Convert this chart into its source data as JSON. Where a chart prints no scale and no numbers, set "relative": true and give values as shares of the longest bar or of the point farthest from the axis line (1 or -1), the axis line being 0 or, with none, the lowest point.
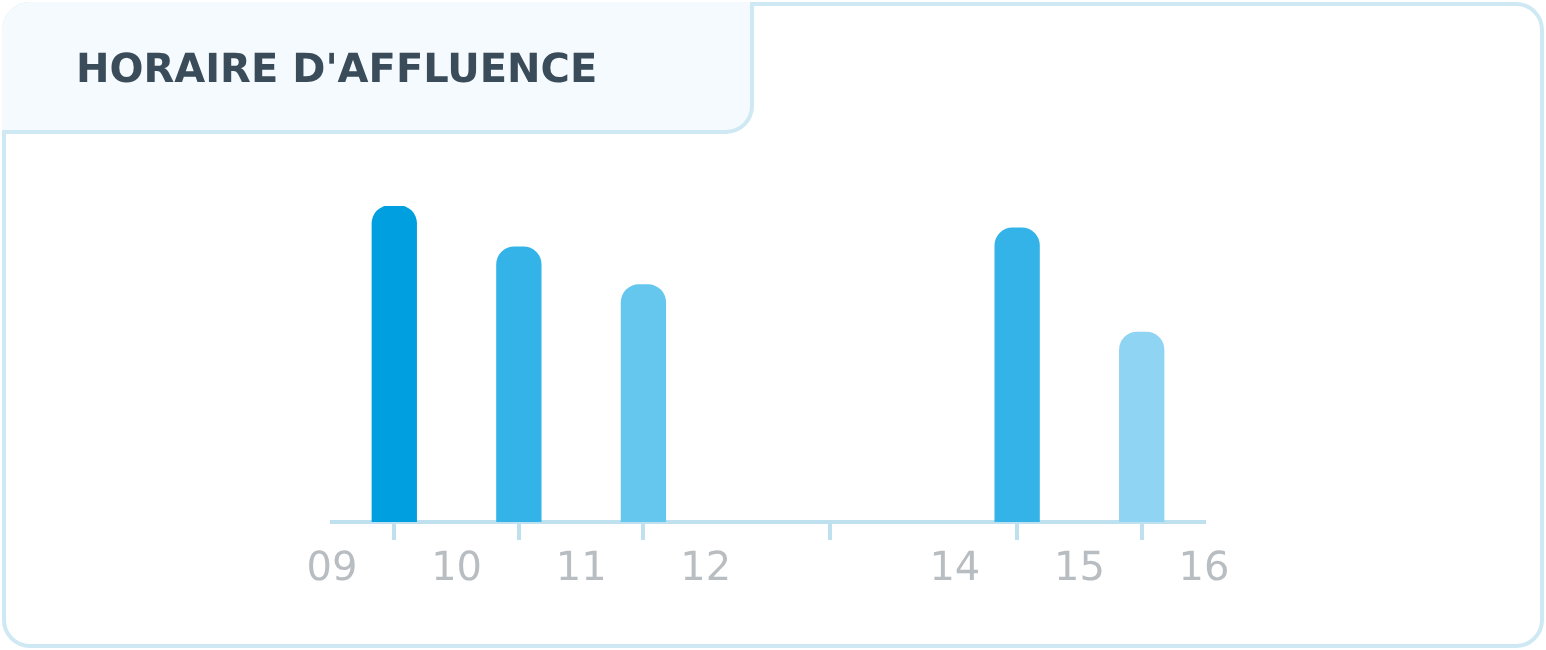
{
  "chart_data": {
    "type": "bar",
    "title": "HORAIRE D'AFFLUENCE",
    "relative": true,
    "x": [
      9.5,
      10.5,
      11.5,
      14.5,
      15.5
    ],
    "values": [
      1,
      0.87,
      0.75,
      0.93,
      0.6
    ],
    "colors": [
      "#009fdf",
      "#33b3e8",
      "#66c7ee",
      "#33b3e8",
      "#8fd4f2"
    ],
    "xlim": [
      9,
      16
    ],
    "xticks": [
      {
        "value": 9,
        "label": "09"
      },
      10,
      11,
      12,
      14,
      15,
      16
    ]
  }
}
